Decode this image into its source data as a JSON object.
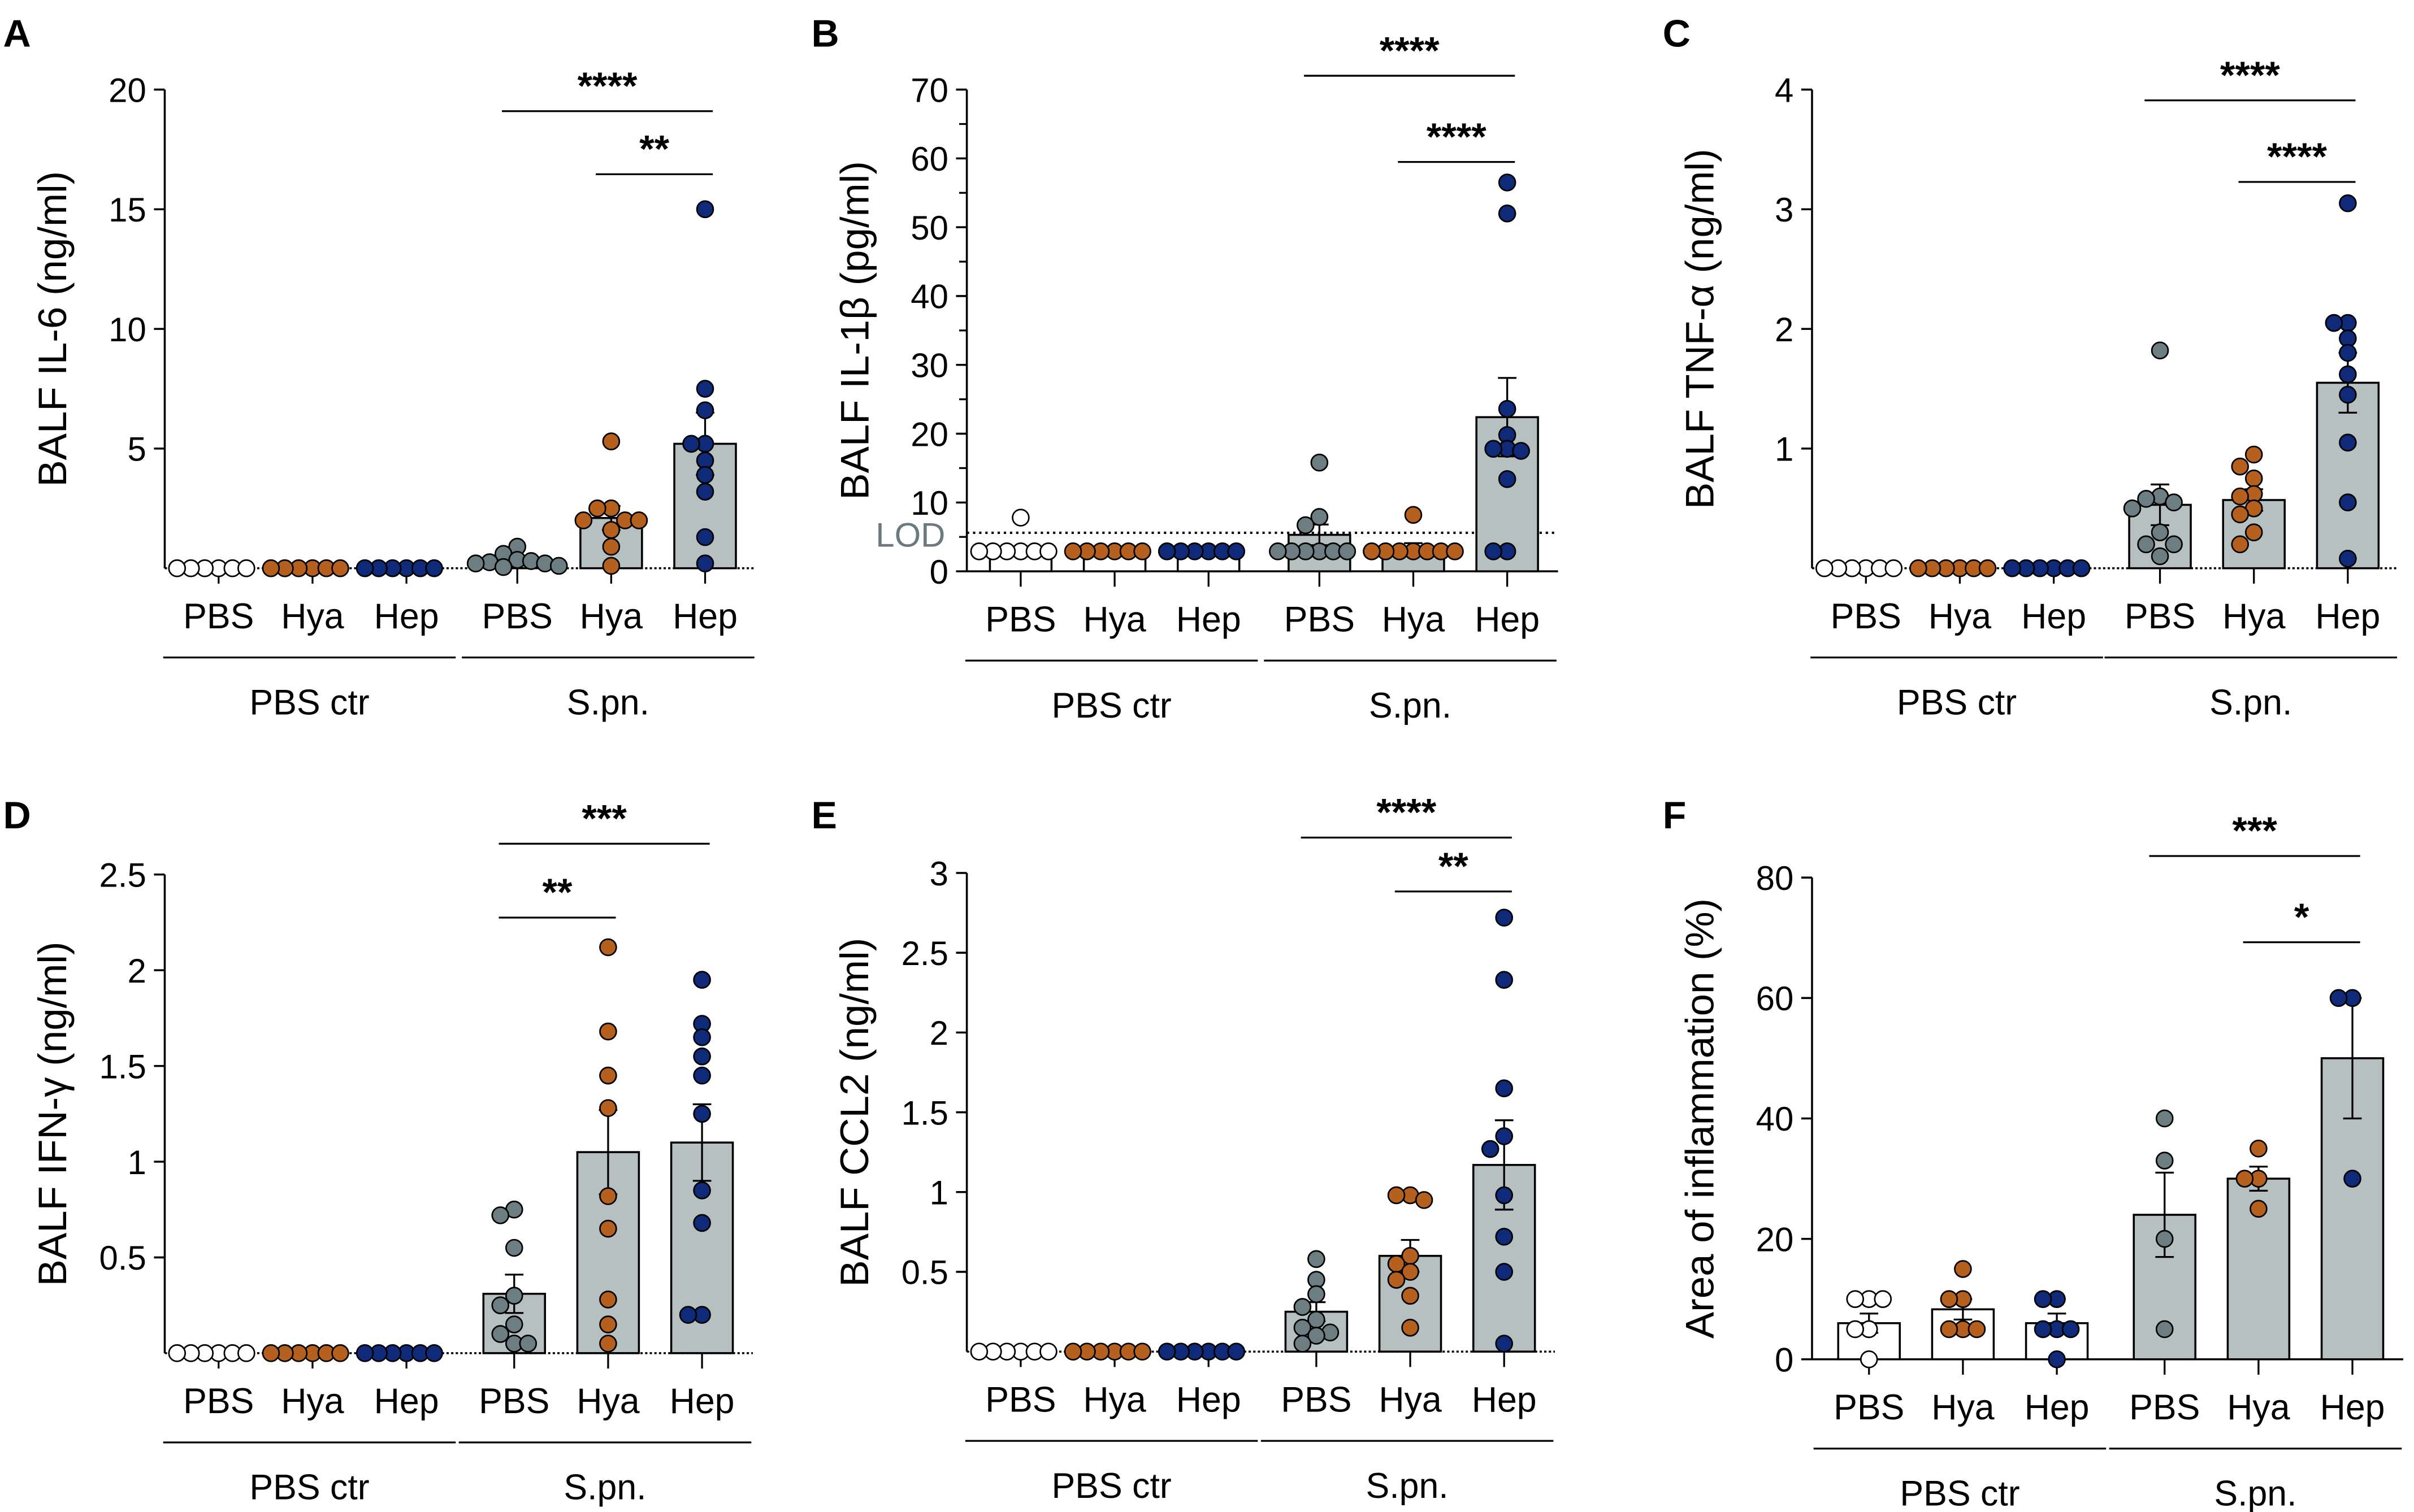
{
  "colors": {
    "ctr_pbs": "#ffffff",
    "hya": "#b5601e",
    "hep": "#0e2a78",
    "spn_pbs": "#6d7e82",
    "bar_spn": "#b6c0c0",
    "bar_ctr": "#ffffff"
  },
  "chart_data": [
    {
      "type": "bar",
      "panel": "A",
      "ylabel": "BALF  IL-6 (ng/ml)",
      "ylim": [
        0,
        20
      ],
      "ticks": [
        5,
        10,
        15,
        20
      ],
      "tick_labels": [
        "5",
        "10",
        "15",
        "20"
      ],
      "minor_ticks": [],
      "categories": [
        "PBS",
        "Hya",
        "Hep",
        "PBS",
        "Hya",
        "Hep"
      ],
      "groups": [
        "PBS ctr",
        "S.pn."
      ],
      "baseline_dotted": true,
      "series": [
        {
          "name": "PBS ctr PBS",
          "color_key": "ctr_pbs",
          "mean": 0,
          "sem": 0,
          "points": [
            0,
            0,
            0,
            0,
            0,
            0
          ]
        },
        {
          "name": "PBS ctr Hya",
          "color_key": "hya",
          "mean": 0,
          "sem": 0,
          "points": [
            0,
            0,
            0,
            0,
            0,
            0
          ]
        },
        {
          "name": "PBS ctr Hep",
          "color_key": "hep",
          "mean": 0,
          "sem": 0,
          "points": [
            0,
            0,
            0,
            0,
            0,
            0
          ]
        },
        {
          "name": "S.pn. PBS",
          "color_key": "spn_pbs",
          "mean": 0.3,
          "sem": 0.1,
          "points": [
            0.9,
            0.6,
            0.35,
            0.3,
            0.25,
            0.2,
            0.2,
            0.1,
            0.05
          ]
        },
        {
          "name": "S.pn. Hya",
          "color_key": "hya",
          "mean": 2.1,
          "sem": 0.5,
          "points": [
            5.3,
            2.5,
            2.5,
            2.0,
            2.0,
            2.0,
            1.6,
            0.9,
            0.1
          ]
        },
        {
          "name": "S.pn. Hep",
          "color_key": "hep",
          "mean": 5.2,
          "sem": 1.3,
          "points": [
            15,
            7.5,
            6.6,
            5.2,
            5.2,
            4.5,
            3.9,
            3.2,
            1.3,
            0.2
          ]
        }
      ],
      "significance": [
        {
          "from": 3,
          "to": 5,
          "label": "****"
        },
        {
          "from": 4,
          "to": 5,
          "label": "**"
        }
      ]
    },
    {
      "type": "bar",
      "panel": "B",
      "ylabel": "BALF  IL-1β (pg/ml)",
      "ylim": [
        0,
        70
      ],
      "ticks": [
        0,
        10,
        20,
        30,
        40,
        50,
        60,
        70
      ],
      "tick_labels": [
        "0",
        "10",
        "20",
        "30",
        "40",
        "50",
        "60",
        "70"
      ],
      "minor_ticks": [
        5,
        15,
        25,
        35,
        45,
        55,
        65
      ],
      "categories": [
        "PBS",
        "Hya",
        "Hep",
        "PBS",
        "Hya",
        "Hep"
      ],
      "groups": [
        "PBS ctr",
        "S.pn."
      ],
      "baseline_dotted": false,
      "lod": {
        "label": "LOD",
        "value": 5.6
      },
      "series": [
        {
          "name": "PBS ctr PBS",
          "color_key": "ctr_pbs",
          "mean": 2.9,
          "sem": 0.6,
          "points": [
            7.8,
            2.9,
            2.9,
            2.9,
            2.9,
            2.9,
            2.9
          ]
        },
        {
          "name": "PBS ctr Hya",
          "color_key": "hya",
          "mean": 2.9,
          "sem": 0,
          "points": [
            2.9,
            2.9,
            2.9,
            2.9,
            2.9,
            2.9
          ]
        },
        {
          "name": "PBS ctr Hep",
          "color_key": "hep",
          "mean": 2.9,
          "sem": 0,
          "points": [
            2.9,
            2.9,
            2.9,
            2.9,
            2.9,
            2.9
          ]
        },
        {
          "name": "S.pn. PBS",
          "color_key": "spn_pbs",
          "mean": 5.3,
          "sem": 1.5,
          "points": [
            15.8,
            7.9,
            6.7,
            2.9,
            2.9,
            2.9,
            2.9,
            2.9,
            2.9
          ]
        },
        {
          "name": "S.pn. Hya",
          "color_key": "hya",
          "mean": 3.5,
          "sem": 0.6,
          "points": [
            8.2,
            2.9,
            2.9,
            2.9,
            2.9,
            2.9,
            2.9,
            2.9
          ]
        },
        {
          "name": "S.pn. Hep",
          "color_key": "hep",
          "mean": 22.4,
          "sem": 5.7,
          "points": [
            56.5,
            52,
            23.6,
            19.8,
            17.8,
            17.8,
            17.5,
            13.4,
            2.9,
            2.9
          ]
        }
      ],
      "significance": [
        {
          "from": 3,
          "to": 5,
          "label": "****"
        },
        {
          "from": 4,
          "to": 5,
          "label": "****"
        }
      ]
    },
    {
      "type": "bar",
      "panel": "C",
      "ylabel": "BALF  TNF-α (ng/ml)",
      "ylim": [
        0,
        4
      ],
      "ticks": [
        1,
        2,
        3,
        4
      ],
      "tick_labels": [
        "1",
        "2",
        "3",
        "4"
      ],
      "minor_ticks": [],
      "categories": [
        "PBS",
        "Hya",
        "Hep",
        "PBS",
        "Hya",
        "Hep"
      ],
      "groups": [
        "PBS ctr",
        "S.pn."
      ],
      "baseline_dotted": true,
      "series": [
        {
          "name": "PBS ctr PBS",
          "color_key": "ctr_pbs",
          "mean": 0,
          "sem": 0,
          "points": [
            0,
            0,
            0,
            0,
            0,
            0
          ]
        },
        {
          "name": "PBS ctr Hya",
          "color_key": "hya",
          "mean": 0,
          "sem": 0,
          "points": [
            0,
            0,
            0,
            0,
            0,
            0
          ]
        },
        {
          "name": "PBS ctr Hep",
          "color_key": "hep",
          "mean": 0,
          "sem": 0,
          "points": [
            0,
            0,
            0,
            0,
            0,
            0
          ]
        },
        {
          "name": "S.pn. PBS",
          "color_key": "spn_pbs",
          "mean": 0.53,
          "sem": 0.17,
          "points": [
            1.82,
            0.6,
            0.58,
            0.55,
            0.5,
            0.3,
            0.2,
            0.2,
            0.1
          ]
        },
        {
          "name": "S.pn. Hya",
          "color_key": "hya",
          "mean": 0.57,
          "sem": 0.09,
          "points": [
            0.95,
            0.85,
            0.75,
            0.62,
            0.6,
            0.5,
            0.45,
            0.3,
            0.2
          ]
        },
        {
          "name": "S.pn. Hep",
          "color_key": "hep",
          "mean": 1.55,
          "sem": 0.25,
          "points": [
            3.05,
            2.05,
            2.05,
            1.92,
            1.8,
            1.62,
            1.45,
            1.05,
            0.55,
            0.08
          ]
        }
      ],
      "significance": [
        {
          "from": 3,
          "to": 5,
          "label": "****"
        },
        {
          "from": 4,
          "to": 5,
          "label": "****"
        }
      ]
    },
    {
      "type": "bar",
      "panel": "D",
      "ylabel": "BALF  IFN-γ (ng/ml)",
      "ylim": [
        0,
        2.5
      ],
      "ticks": [
        0.5,
        1,
        1.5,
        2,
        2.5
      ],
      "tick_labels": [
        "0.5",
        "1",
        "1.5",
        "2",
        "2.5"
      ],
      "minor_ticks": [],
      "categories": [
        "PBS",
        "Hya",
        "Hep",
        "PBS",
        "Hya",
        "Hep"
      ],
      "groups": [
        "PBS ctr",
        "S.pn."
      ],
      "baseline_dotted": true,
      "series": [
        {
          "name": "PBS ctr PBS",
          "color_key": "ctr_pbs",
          "mean": 0,
          "sem": 0,
          "points": [
            0,
            0,
            0,
            0,
            0,
            0
          ]
        },
        {
          "name": "PBS ctr Hya",
          "color_key": "hya",
          "mean": 0,
          "sem": 0,
          "points": [
            0,
            0,
            0,
            0,
            0,
            0
          ]
        },
        {
          "name": "PBS ctr Hep",
          "color_key": "hep",
          "mean": 0,
          "sem": 0,
          "points": [
            0,
            0,
            0,
            0,
            0,
            0
          ]
        },
        {
          "name": "S.pn. PBS",
          "color_key": "spn_pbs",
          "mean": 0.31,
          "sem": 0.1,
          "points": [
            0.75,
            0.72,
            0.55,
            0.3,
            0.25,
            0.15,
            0.1,
            0.05,
            0.05
          ]
        },
        {
          "name": "S.pn. Hya",
          "color_key": "hya",
          "mean": 1.05,
          "sem": 0.22,
          "points": [
            2.12,
            1.68,
            1.45,
            1.28,
            0.82,
            0.65,
            0.28,
            0.15,
            0.05
          ]
        },
        {
          "name": "S.pn. Hep",
          "color_key": "hep",
          "mean": 1.1,
          "sem": 0.2,
          "points": [
            1.95,
            1.72,
            1.65,
            1.55,
            1.45,
            1.25,
            0.85,
            0.68,
            0.2,
            0.2
          ]
        }
      ],
      "significance": [
        {
          "from": 3,
          "to": 5,
          "label": "***"
        },
        {
          "from": 3,
          "to": 4,
          "label": "**"
        }
      ]
    },
    {
      "type": "bar",
      "panel": "E",
      "ylabel": "BALF  CCL2 (ng/ml)",
      "ylim": [
        0,
        3
      ],
      "ticks": [
        0.5,
        1,
        1.5,
        2,
        2.5,
        3
      ],
      "tick_labels": [
        "0.5",
        "1",
        "1.5",
        "2",
        "2.5",
        "3"
      ],
      "minor_ticks": [],
      "categories": [
        "PBS",
        "Hya",
        "Hep",
        "PBS",
        "Hya",
        "Hep"
      ],
      "groups": [
        "PBS ctr",
        "S.pn."
      ],
      "baseline_dotted": true,
      "series": [
        {
          "name": "PBS ctr PBS",
          "color_key": "ctr_pbs",
          "mean": 0,
          "sem": 0,
          "points": [
            0,
            0,
            0,
            0,
            0,
            0
          ]
        },
        {
          "name": "PBS ctr Hya",
          "color_key": "hya",
          "mean": 0,
          "sem": 0,
          "points": [
            0,
            0,
            0,
            0,
            0,
            0
          ]
        },
        {
          "name": "PBS ctr Hep",
          "color_key": "hep",
          "mean": 0,
          "sem": 0,
          "points": [
            0,
            0,
            0,
            0,
            0,
            0
          ]
        },
        {
          "name": "S.pn. PBS",
          "color_key": "spn_pbs",
          "mean": 0.25,
          "sem": 0.06,
          "points": [
            0.58,
            0.45,
            0.36,
            0.28,
            0.2,
            0.15,
            0.12,
            0.1,
            0.05
          ]
        },
        {
          "name": "S.pn. Hya",
          "color_key": "hya",
          "mean": 0.6,
          "sem": 0.1,
          "points": [
            0.98,
            0.98,
            0.95,
            0.6,
            0.55,
            0.5,
            0.45,
            0.35,
            0.15
          ]
        },
        {
          "name": "S.pn. Hep",
          "color_key": "hep",
          "mean": 1.17,
          "sem": 0.28,
          "points": [
            2.72,
            2.33,
            1.65,
            1.35,
            1.27,
            0.98,
            0.72,
            0.5,
            0.05
          ]
        }
      ],
      "significance": [
        {
          "from": 3,
          "to": 5,
          "label": "****"
        },
        {
          "from": 4,
          "to": 5,
          "label": "**"
        }
      ]
    },
    {
      "type": "bar",
      "panel": "F",
      "ylabel": "Area of inflammation (%)",
      "ylim": [
        0,
        80
      ],
      "ticks": [
        0,
        20,
        40,
        60,
        80
      ],
      "tick_labels": [
        "0",
        "20",
        "40",
        "60",
        "80"
      ],
      "minor_ticks": [],
      "categories": [
        "PBS",
        "Hya",
        "Hep",
        "PBS",
        "Hya",
        "Hep"
      ],
      "groups": [
        "PBS ctr",
        "S.pn."
      ],
      "baseline_dotted": false,
      "series": [
        {
          "name": "PBS ctr PBS",
          "color_key": "ctr_pbs",
          "mean": 6,
          "sem": 1.6,
          "points": [
            10,
            10,
            10,
            5,
            5,
            0
          ]
        },
        {
          "name": "PBS ctr Hya",
          "color_key": "hya",
          "mean": 8.3,
          "sem": 1.7,
          "points": [
            15,
            10,
            10,
            5,
            5,
            5
          ]
        },
        {
          "name": "PBS ctr Hep",
          "color_key": "hep",
          "mean": 6,
          "sem": 1.6,
          "points": [
            10,
            10,
            5,
            5,
            5,
            0
          ]
        },
        {
          "name": "S.pn. PBS",
          "color_key": "spn_pbs",
          "mean": 24,
          "sem": 7,
          "points": [
            40,
            33,
            20,
            5
          ]
        },
        {
          "name": "S.pn. Hya",
          "color_key": "hya",
          "mean": 30,
          "sem": 2,
          "points": [
            35,
            30,
            30,
            25
          ]
        },
        {
          "name": "S.pn. Hep",
          "color_key": "hep",
          "mean": 50,
          "sem": 10,
          "points": [
            60,
            60,
            30
          ]
        }
      ],
      "significance": [
        {
          "from": 3,
          "to": 5,
          "label": "***"
        },
        {
          "from": 4,
          "to": 5,
          "label": "*"
        }
      ]
    }
  ]
}
